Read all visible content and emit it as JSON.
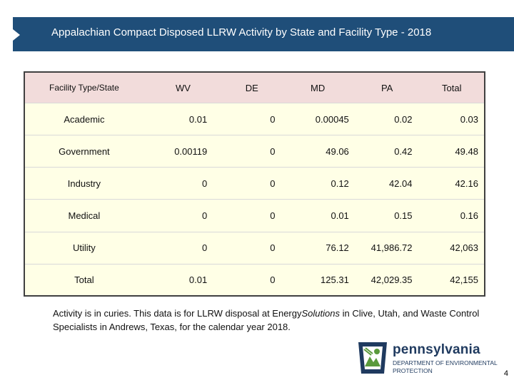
{
  "title": "Appalachian Compact Disposed LLRW Activity by State and Facility Type - 2018",
  "table": {
    "headers": [
      "Facility Type/State",
      "WV",
      "DE",
      "MD",
      "PA",
      "Total"
    ],
    "rows": [
      {
        "label": "Academic",
        "values": [
          "0.01",
          "0",
          "0.00045",
          "0.02",
          "0.03"
        ]
      },
      {
        "label": "Government",
        "values": [
          "0.00119",
          "0",
          "49.06",
          "0.42",
          "49.48"
        ]
      },
      {
        "label": "Industry",
        "values": [
          "0",
          "0",
          "0.12",
          "42.04",
          "42.16"
        ]
      },
      {
        "label": "Medical",
        "values": [
          "0",
          "0",
          "0.01",
          "0.15",
          "0.16"
        ]
      },
      {
        "label": "Utility",
        "values": [
          "0",
          "0",
          "76.12",
          "41,986.72",
          "42,063"
        ]
      },
      {
        "label": "Total",
        "values": [
          "0.01",
          "0",
          "125.31",
          "42,029.35",
          "42,155"
        ]
      }
    ]
  },
  "footnote": {
    "part1": "Activity is in curies.  This data is for LLRW disposal at Energy",
    "italic": "Solutions",
    "part2": " in Clive, Utah, and Waste Control Specialists in Andrews, Texas, for the calendar year 2018."
  },
  "logo": {
    "name": "pennsylvania",
    "line1": "DEPARTMENT OF ENVIRONMENTAL",
    "line2": "PROTECTION"
  },
  "page_number": "4",
  "colors": {
    "title_bar": "#1f4e79",
    "header_fill": "#f2dcdb",
    "cell_fill": "#ffffe6",
    "logo_blue": "#1f3a5f",
    "logo_green": "#5a9a3c"
  }
}
